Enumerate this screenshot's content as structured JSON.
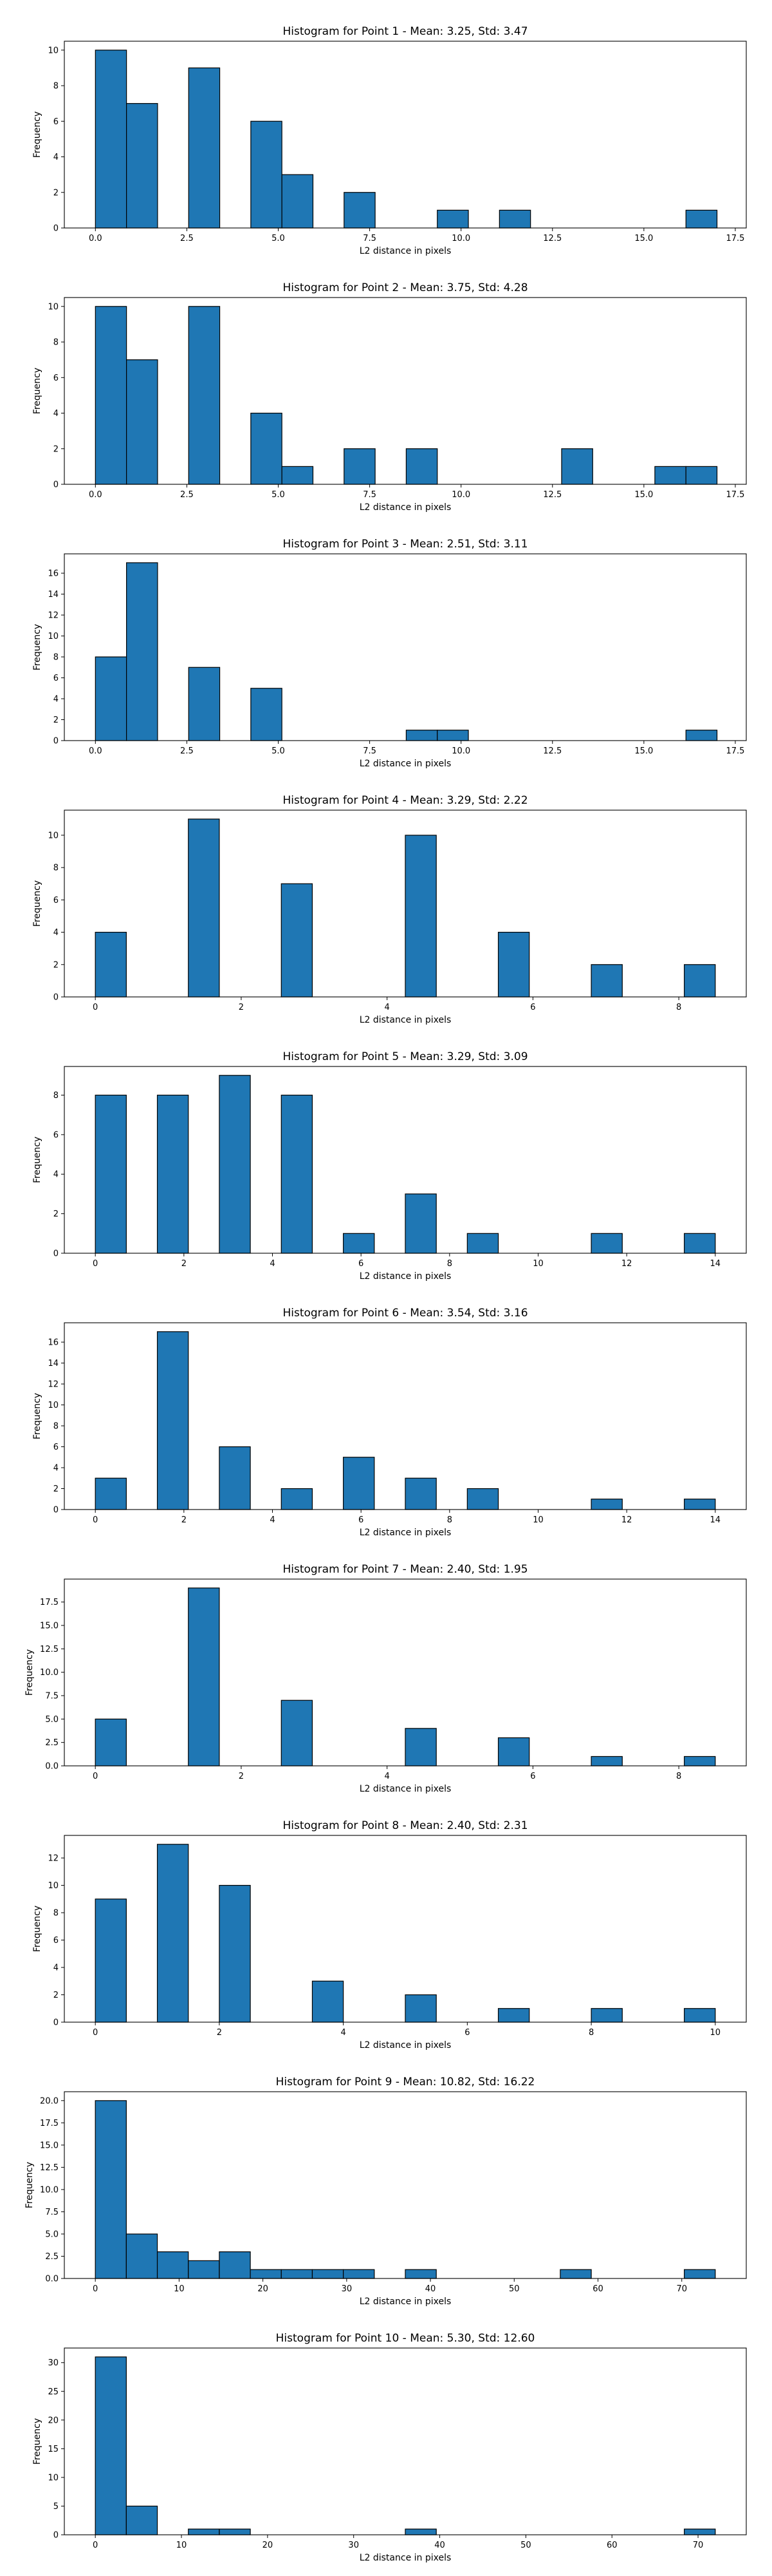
{
  "chart_data": [
    {
      "type": "bar",
      "title": "Histogram for Point 1 - Mean: 3.25, Std: 3.47",
      "xlabel": "L2 distance in pixels",
      "ylabel": "Frequency",
      "xlim": [
        -0.85,
        17.8
      ],
      "ylim": [
        0,
        10.5
      ],
      "xticks": [
        0.0,
        2.5,
        5.0,
        7.5,
        10.0,
        12.5,
        15.0,
        17.5
      ],
      "xtick_labels": [
        "0.0",
        "2.5",
        "5.0",
        "7.5",
        "10.0",
        "12.5",
        "15.0",
        "17.5"
      ],
      "yticks": [
        0,
        2,
        4,
        6,
        8,
        10
      ],
      "bars": [
        {
          "x0": 0.0,
          "x1": 0.85,
          "value": 10
        },
        {
          "x0": 0.85,
          "x1": 1.7,
          "value": 7
        },
        {
          "x0": 2.55,
          "x1": 3.4,
          "value": 9
        },
        {
          "x0": 4.25,
          "x1": 5.1,
          "value": 6
        },
        {
          "x0": 5.1,
          "x1": 5.95,
          "value": 3
        },
        {
          "x0": 6.8,
          "x1": 7.65,
          "value": 2
        },
        {
          "x0": 9.35,
          "x1": 10.2,
          "value": 1
        },
        {
          "x0": 11.05,
          "x1": 11.9,
          "value": 1
        },
        {
          "x0": 16.15,
          "x1": 17.0,
          "value": 1
        }
      ]
    },
    {
      "type": "bar",
      "title": "Histogram for Point 2 - Mean: 3.75, Std: 4.28",
      "xlabel": "L2 distance in pixels",
      "ylabel": "Frequency",
      "xlim": [
        -0.85,
        17.8
      ],
      "ylim": [
        0,
        10.5
      ],
      "xticks": [
        0.0,
        2.5,
        5.0,
        7.5,
        10.0,
        12.5,
        15.0,
        17.5
      ],
      "xtick_labels": [
        "0.0",
        "2.5",
        "5.0",
        "7.5",
        "10.0",
        "12.5",
        "15.0",
        "17.5"
      ],
      "yticks": [
        0,
        2,
        4,
        6,
        8,
        10
      ],
      "bars": [
        {
          "x0": 0.0,
          "x1": 0.85,
          "value": 10
        },
        {
          "x0": 0.85,
          "x1": 1.7,
          "value": 7
        },
        {
          "x0": 2.55,
          "x1": 3.4,
          "value": 10
        },
        {
          "x0": 4.25,
          "x1": 5.1,
          "value": 4
        },
        {
          "x0": 5.1,
          "x1": 5.95,
          "value": 1
        },
        {
          "x0": 6.8,
          "x1": 7.65,
          "value": 2
        },
        {
          "x0": 8.5,
          "x1": 9.35,
          "value": 2
        },
        {
          "x0": 12.75,
          "x1": 13.6,
          "value": 2
        },
        {
          "x0": 15.3,
          "x1": 16.15,
          "value": 1
        },
        {
          "x0": 16.15,
          "x1": 17.0,
          "value": 1
        }
      ]
    },
    {
      "type": "bar",
      "title": "Histogram for Point 3 - Mean: 2.51, Std: 3.11",
      "xlabel": "L2 distance in pixels",
      "ylabel": "Frequency",
      "xlim": [
        -0.85,
        17.8
      ],
      "ylim": [
        0,
        17.85
      ],
      "xticks": [
        0.0,
        2.5,
        5.0,
        7.5,
        10.0,
        12.5,
        15.0,
        17.5
      ],
      "xtick_labels": [
        "0.0",
        "2.5",
        "5.0",
        "7.5",
        "10.0",
        "12.5",
        "15.0",
        "17.5"
      ],
      "yticks": [
        0,
        2,
        4,
        6,
        8,
        10,
        12,
        14,
        16
      ],
      "bars": [
        {
          "x0": 0.0,
          "x1": 0.85,
          "value": 8
        },
        {
          "x0": 0.85,
          "x1": 1.7,
          "value": 17
        },
        {
          "x0": 2.55,
          "x1": 3.4,
          "value": 7
        },
        {
          "x0": 4.25,
          "x1": 5.1,
          "value": 5
        },
        {
          "x0": 8.5,
          "x1": 9.35,
          "value": 1
        },
        {
          "x0": 9.35,
          "x1": 10.2,
          "value": 1
        },
        {
          "x0": 16.15,
          "x1": 17.0,
          "value": 1
        }
      ]
    },
    {
      "type": "bar",
      "title": "Histogram for Point 4 - Mean: 3.29, Std: 2.22",
      "xlabel": "L2 distance in pixels",
      "ylabel": "Frequency",
      "xlim": [
        -0.425,
        8.925
      ],
      "ylim": [
        0,
        11.55
      ],
      "xticks": [
        0,
        2,
        4,
        6,
        8
      ],
      "xtick_labels": [
        "0",
        "2",
        "4",
        "6",
        "8"
      ],
      "yticks": [
        0,
        2,
        4,
        6,
        8,
        10
      ],
      "bars": [
        {
          "x0": 0.0,
          "x1": 0.425,
          "value": 4
        },
        {
          "x0": 1.275,
          "x1": 1.7,
          "value": 11
        },
        {
          "x0": 2.55,
          "x1": 2.975,
          "value": 7
        },
        {
          "x0": 4.25,
          "x1": 4.675,
          "value": 10
        },
        {
          "x0": 5.525,
          "x1": 5.95,
          "value": 4
        },
        {
          "x0": 6.8,
          "x1": 7.225,
          "value": 2
        },
        {
          "x0": 8.075,
          "x1": 8.5,
          "value": 2
        }
      ]
    },
    {
      "type": "bar",
      "title": "Histogram for Point 5 - Mean: 3.29, Std: 3.09",
      "xlabel": "L2 distance in pixels",
      "ylabel": "Frequency",
      "xlim": [
        -0.7,
        14.7
      ],
      "ylim": [
        0,
        9.45
      ],
      "xticks": [
        0,
        2,
        4,
        6,
        8,
        10,
        12,
        14
      ],
      "xtick_labels": [
        "0",
        "2",
        "4",
        "6",
        "8",
        "10",
        "12",
        "14"
      ],
      "yticks": [
        0,
        2,
        4,
        6,
        8
      ],
      "bars": [
        {
          "x0": 0.0,
          "x1": 0.7,
          "value": 8
        },
        {
          "x0": 1.4,
          "x1": 2.1,
          "value": 8
        },
        {
          "x0": 2.8,
          "x1": 3.5,
          "value": 9
        },
        {
          "x0": 4.2,
          "x1": 4.9,
          "value": 8
        },
        {
          "x0": 5.6,
          "x1": 6.3,
          "value": 1
        },
        {
          "x0": 7.0,
          "x1": 7.7,
          "value": 3
        },
        {
          "x0": 8.4,
          "x1": 9.1,
          "value": 1
        },
        {
          "x0": 11.2,
          "x1": 11.9,
          "value": 1
        },
        {
          "x0": 13.3,
          "x1": 14.0,
          "value": 1
        }
      ]
    },
    {
      "type": "bar",
      "title": "Histogram for Point 6 - Mean: 3.54, Std: 3.16",
      "xlabel": "L2 distance in pixels",
      "ylabel": "Frequency",
      "xlim": [
        -0.7,
        14.7
      ],
      "ylim": [
        0,
        17.85
      ],
      "xticks": [
        0,
        2,
        4,
        6,
        8,
        10,
        12,
        14
      ],
      "xtick_labels": [
        "0",
        "2",
        "4",
        "6",
        "8",
        "10",
        "12",
        "14"
      ],
      "yticks": [
        0,
        2,
        4,
        6,
        8,
        10,
        12,
        14,
        16
      ],
      "bars": [
        {
          "x0": 0.0,
          "x1": 0.7,
          "value": 3
        },
        {
          "x0": 1.4,
          "x1": 2.1,
          "value": 17
        },
        {
          "x0": 2.8,
          "x1": 3.5,
          "value": 6
        },
        {
          "x0": 4.2,
          "x1": 4.9,
          "value": 2
        },
        {
          "x0": 5.6,
          "x1": 6.3,
          "value": 5
        },
        {
          "x0": 7.0,
          "x1": 7.7,
          "value": 3
        },
        {
          "x0": 8.4,
          "x1": 9.1,
          "value": 2
        },
        {
          "x0": 11.2,
          "x1": 11.9,
          "value": 1
        },
        {
          "x0": 13.3,
          "x1": 14.0,
          "value": 1
        }
      ]
    },
    {
      "type": "bar",
      "title": "Histogram for Point 7 - Mean: 2.40, Std: 1.95",
      "xlabel": "L2 distance in pixels",
      "ylabel": "Frequency",
      "xlim": [
        -0.425,
        8.925
      ],
      "ylim": [
        0,
        19.95
      ],
      "xticks": [
        0,
        2,
        4,
        6,
        8
      ],
      "xtick_labels": [
        "0",
        "2",
        "4",
        "6",
        "8"
      ],
      "yticks": [
        0,
        2.5,
        5,
        7.5,
        10,
        12.5,
        15,
        17.5
      ],
      "ytick_labels": [
        "0.0",
        "2.5",
        "5.0",
        "7.5",
        "10.0",
        "12.5",
        "15.0",
        "17.5"
      ],
      "bars": [
        {
          "x0": 0.0,
          "x1": 0.425,
          "value": 5
        },
        {
          "x0": 1.275,
          "x1": 1.7,
          "value": 19
        },
        {
          "x0": 2.55,
          "x1": 2.975,
          "value": 7
        },
        {
          "x0": 4.25,
          "x1": 4.675,
          "value": 4
        },
        {
          "x0": 5.525,
          "x1": 5.95,
          "value": 3
        },
        {
          "x0": 6.8,
          "x1": 7.225,
          "value": 1
        },
        {
          "x0": 8.075,
          "x1": 8.5,
          "value": 1
        }
      ]
    },
    {
      "type": "bar",
      "title": "Histogram for Point 8 - Mean: 2.40, Std: 2.31",
      "xlabel": "L2 distance in pixels",
      "ylabel": "Frequency",
      "xlim": [
        -0.5,
        10.5
      ],
      "ylim": [
        0,
        13.65
      ],
      "xticks": [
        0,
        2,
        4,
        6,
        8,
        10
      ],
      "xtick_labels": [
        "0",
        "2",
        "4",
        "6",
        "8",
        "10"
      ],
      "yticks": [
        0,
        2,
        4,
        6,
        8,
        10,
        12
      ],
      "bars": [
        {
          "x0": 0.0,
          "x1": 0.5,
          "value": 9
        },
        {
          "x0": 1.0,
          "x1": 1.5,
          "value": 13
        },
        {
          "x0": 2.0,
          "x1": 2.5,
          "value": 10
        },
        {
          "x0": 3.5,
          "x1": 4.0,
          "value": 3
        },
        {
          "x0": 5.0,
          "x1": 5.5,
          "value": 2
        },
        {
          "x0": 6.5,
          "x1": 7.0,
          "value": 1
        },
        {
          "x0": 8.0,
          "x1": 8.5,
          "value": 1
        },
        {
          "x0": 9.5,
          "x1": 10.0,
          "value": 1
        }
      ]
    },
    {
      "type": "bar",
      "title": "Histogram for Point 9 - Mean: 10.82, Std: 16.22",
      "xlabel": "L2 distance in pixels",
      "ylabel": "Frequency",
      "xlim": [
        -3.7,
        77.7
      ],
      "ylim": [
        0,
        21
      ],
      "xticks": [
        0,
        10,
        20,
        30,
        40,
        50,
        60,
        70
      ],
      "xtick_labels": [
        "0",
        "10",
        "20",
        "30",
        "40",
        "50",
        "60",
        "70"
      ],
      "yticks": [
        0,
        2.5,
        5,
        7.5,
        10,
        12.5,
        15,
        17.5,
        20
      ],
      "ytick_labels": [
        "0.0",
        "2.5",
        "5.0",
        "7.5",
        "10.0",
        "12.5",
        "15.0",
        "17.5",
        "20.0"
      ],
      "bars": [
        {
          "x0": 0.0,
          "x1": 3.7,
          "value": 20
        },
        {
          "x0": 3.7,
          "x1": 7.4,
          "value": 5
        },
        {
          "x0": 7.4,
          "x1": 11.1,
          "value": 3
        },
        {
          "x0": 11.1,
          "x1": 14.8,
          "value": 2
        },
        {
          "x0": 14.8,
          "x1": 18.5,
          "value": 3
        },
        {
          "x0": 18.5,
          "x1": 22.2,
          "value": 1
        },
        {
          "x0": 22.2,
          "x1": 25.9,
          "value": 1
        },
        {
          "x0": 25.9,
          "x1": 29.6,
          "value": 1
        },
        {
          "x0": 29.6,
          "x1": 33.3,
          "value": 1
        },
        {
          "x0": 37.0,
          "x1": 40.7,
          "value": 1
        },
        {
          "x0": 55.5,
          "x1": 59.2,
          "value": 1
        },
        {
          "x0": 70.3,
          "x1": 74.0,
          "value": 1
        }
      ]
    },
    {
      "type": "bar",
      "title": "Histogram for Point 10 - Mean: 5.30, Std: 12.60",
      "xlabel": "L2 distance in pixels",
      "ylabel": "Frequency",
      "xlim": [
        -3.6,
        75.6
      ],
      "ylim": [
        0,
        32.55
      ],
      "xticks": [
        0,
        10,
        20,
        30,
        40,
        50,
        60,
        70
      ],
      "xtick_labels": [
        "0",
        "10",
        "20",
        "30",
        "40",
        "50",
        "60",
        "70"
      ],
      "yticks": [
        0,
        5,
        10,
        15,
        20,
        25,
        30
      ],
      "bars": [
        {
          "x0": 0.0,
          "x1": 3.6,
          "value": 31
        },
        {
          "x0": 3.6,
          "x1": 7.2,
          "value": 5
        },
        {
          "x0": 10.8,
          "x1": 14.4,
          "value": 1
        },
        {
          "x0": 14.4,
          "x1": 18.0,
          "value": 1
        },
        {
          "x0": 36.0,
          "x1": 39.6,
          "value": 1
        },
        {
          "x0": 68.4,
          "x1": 72.0,
          "value": 1
        }
      ]
    }
  ]
}
